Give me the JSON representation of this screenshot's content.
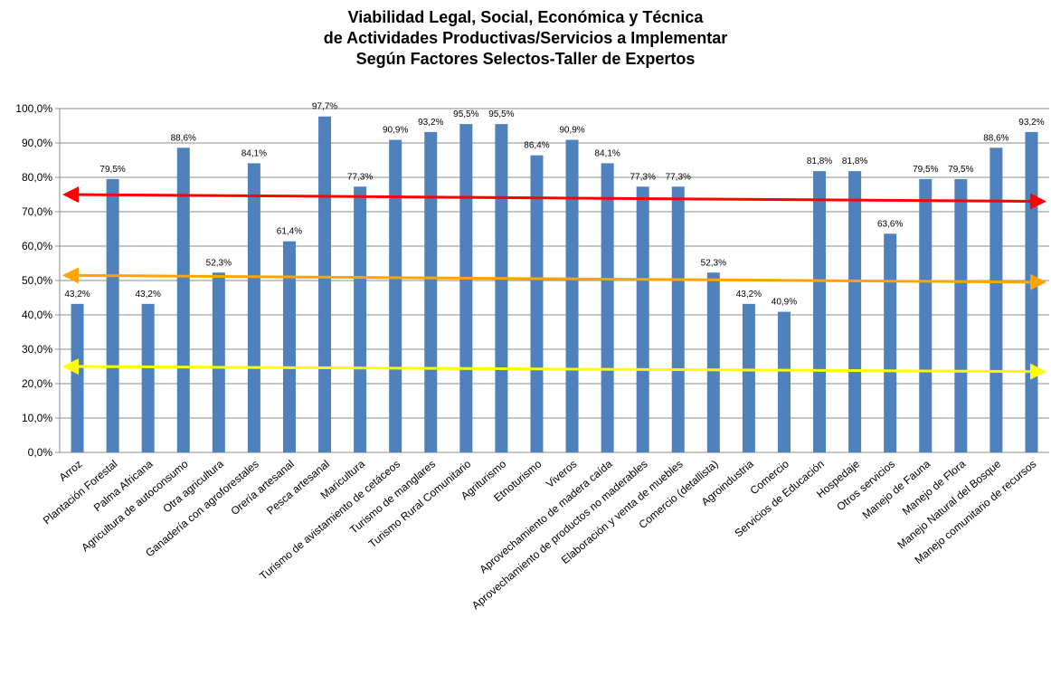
{
  "chart_data": {
    "type": "bar",
    "title_lines": [
      "Viabilidad Legal, Social, Económica y Técnica",
      "de Actividades Productivas/Servicios a Implementar",
      "Según Factores Selectos-Taller de Expertos"
    ],
    "xlabel": "",
    "ylabel": "",
    "ylim": [
      0,
      100
    ],
    "yticks": [
      "0,0%",
      "10,0%",
      "20,0%",
      "30,0%",
      "40,0%",
      "50,0%",
      "60,0%",
      "70,0%",
      "80,0%",
      "90,0%",
      "100,0%"
    ],
    "grid": true,
    "legend": "none",
    "bar_color": "#4F81BD",
    "categories": [
      "Arroz",
      "Plantación Forestal",
      "Palma Africana",
      "Agricultura de autoconsumo",
      "Otra agricultura",
      "Ganadería con agroforestales",
      "Orería artesanal",
      "Pesca artesanal",
      "Maricultura",
      "Turismo de avistamiento de cetáceos",
      "Turismo de manglares",
      "Turismo Rural Comunitario",
      "Agriturismo",
      "Etnoturismo",
      "Viveros",
      "Aprovechamiento de madera caída",
      "Aprovechamiento de productos no maderables",
      "Elaboración y venta de muebles",
      "Comercio (detallista)",
      "Agroindustria",
      "Comercio",
      "Servicios de Educación",
      "Hospedaje",
      "Otros servicios",
      "Manejo de Fauna",
      "Manejo de Flora",
      "Manejo Natural del Bosque",
      "Manejo comunitario de recursos"
    ],
    "values": [
      43.2,
      79.5,
      43.2,
      88.6,
      52.3,
      84.1,
      61.4,
      97.7,
      77.3,
      90.9,
      93.2,
      95.5,
      95.5,
      86.4,
      90.9,
      84.1,
      77.3,
      77.3,
      52.3,
      43.2,
      40.9,
      81.8,
      81.8,
      63.6,
      79.5,
      79.5,
      88.6,
      93.2
    ],
    "value_labels": [
      "43,2%",
      "79,5%",
      "43,2%",
      "88,6%",
      "52,3%",
      "84,1%",
      "61,4%",
      "97,7%",
      "77,3%",
      "90,9%",
      "93,2%",
      "95,5%",
      "95,5%",
      "86,4%",
      "90,9%",
      "84,1%",
      "77,3%",
      "77,3%",
      "52,3%",
      "43,2%",
      "40,9%",
      "81,8%",
      "81,8%",
      "63,6%",
      "79,5%",
      "79,5%",
      "88,6%",
      "93,2%"
    ],
    "annotations": [
      {
        "type": "double-arrow",
        "color": "#FF0000",
        "from_y": 75.0,
        "to_y": 73.0
      },
      {
        "type": "double-arrow",
        "color": "#FFA500",
        "from_y": 51.5,
        "to_y": 49.5
      },
      {
        "type": "double-arrow",
        "color": "#FFFF00",
        "from_y": 25.0,
        "to_y": 23.5
      }
    ]
  }
}
